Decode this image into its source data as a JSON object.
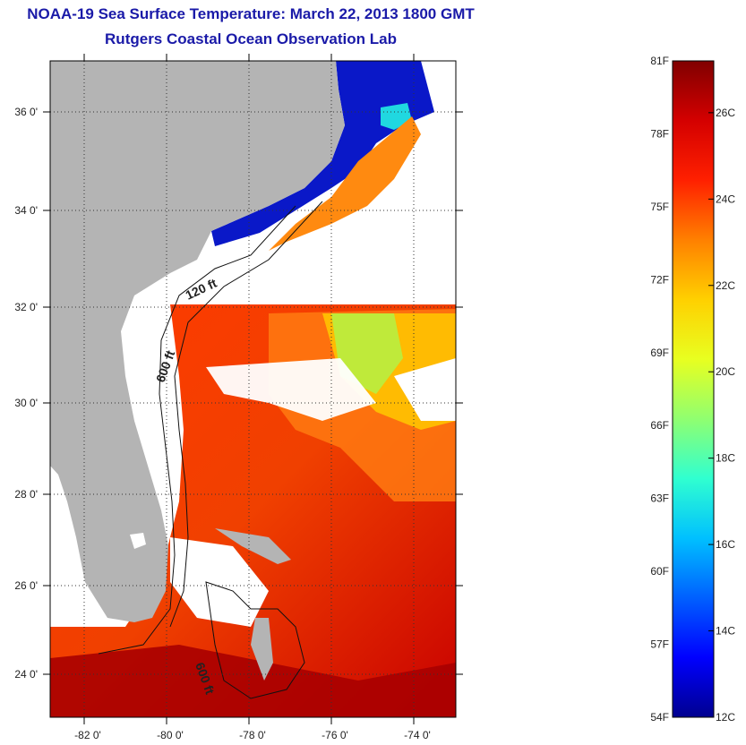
{
  "title": {
    "line1": "NOAA-19 Sea Surface Temperature:  March 22, 2013 1800 GMT",
    "line2": "Rutgers Coastal Ocean Observation Lab"
  },
  "map": {
    "lon_ticks": [
      "-82 0'",
      "-80 0'",
      "-78 0'",
      "-76 0'",
      "-74 0'"
    ],
    "lat_ticks": [
      "36 0'",
      "34 0'",
      "32 0'",
      "30 0'",
      "28 0'",
      "26 0'",
      "24 0'"
    ],
    "depth_labels": [
      "120 ft",
      "600 ft",
      "600 ft"
    ],
    "land_color": "#b4b4b4",
    "cloud_color": "#ffffff"
  },
  "colorbar": {
    "fahrenheit": [
      "81F",
      "78F",
      "75F",
      "72F",
      "69F",
      "66F",
      "63F",
      "60F",
      "57F",
      "54F"
    ],
    "celsius": [
      "26C",
      "24C",
      "22C",
      "20C",
      "18C",
      "16C",
      "14C",
      "12C"
    ],
    "range_f": [
      54,
      81
    ],
    "range_c": [
      12,
      27.2
    ],
    "stops": [
      "#00008f",
      "#0000ff",
      "#0060ff",
      "#00c0ff",
      "#30ffd0",
      "#90ff70",
      "#e8ff20",
      "#ffd000",
      "#ff8000",
      "#ff2000",
      "#d40000",
      "#800000"
    ]
  }
}
